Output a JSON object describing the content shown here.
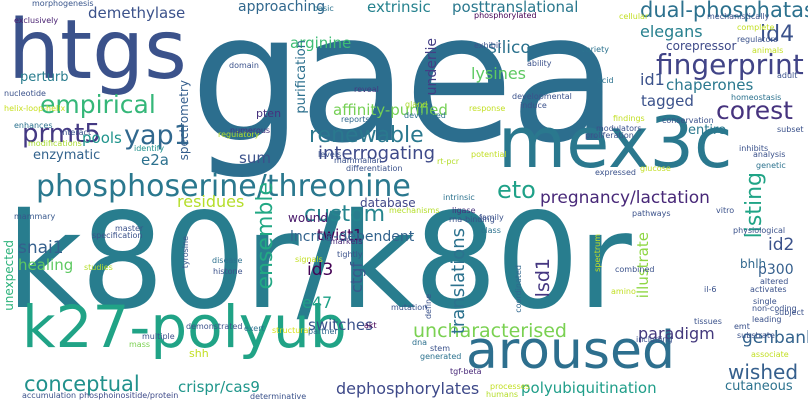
{
  "title": "",
  "words": [
    {
      "text": "gaea",
      "color": "#2c6e8e"
    },
    {
      "text": "k80r/k80r",
      "color": "#287d8e"
    },
    {
      "text": "htgs",
      "color": "#3b528b"
    },
    {
      "text": "k27-polyub",
      "color": "#20a386"
    },
    {
      "text": "mex3c",
      "color": "#2a788e"
    },
    {
      "text": "aroused",
      "color": "#2d6f8e"
    },
    {
      "text": "phosphoserine/threonine",
      "color": "#2a788e"
    },
    {
      "text": "fingerprint",
      "color": "#414487"
    },
    {
      "text": "dual-phosphatase",
      "color": "#2c718e"
    },
    {
      "text": "empirical",
      "color": "#35b779"
    },
    {
      "text": "prmt5",
      "color": "#443983"
    },
    {
      "text": "yap1",
      "color": "#31688e"
    },
    {
      "text": "corest",
      "color": "#46337e"
    },
    {
      "text": "id4",
      "color": "#3b528b"
    },
    {
      "text": "renewable",
      "color": "#2a788e"
    },
    {
      "text": "interrogating",
      "color": "#3e4a89"
    },
    {
      "text": "custom",
      "color": "#25858e"
    },
    {
      "text": "ensemble",
      "color": "#22a884"
    },
    {
      "text": "listing",
      "color": "#20a486"
    },
    {
      "text": "pregnancy/lactation",
      "color": "#482878"
    },
    {
      "text": "eto",
      "color": "#1fa188"
    },
    {
      "text": "uncharacterised",
      "color": "#7ad151"
    },
    {
      "text": "conceptual",
      "color": "#21918c"
    },
    {
      "text": "crispr/cas9",
      "color": "#1f968b"
    },
    {
      "text": "dephosphorylates",
      "color": "#3e4989"
    },
    {
      "text": "polyubiquitination",
      "color": "#1f9e89"
    },
    {
      "text": "wished",
      "color": "#355f8d"
    },
    {
      "text": "genbank",
      "color": "#33638d"
    },
    {
      "text": "paradigm",
      "color": "#44397d"
    },
    {
      "text": "translations",
      "color": "#2c728e"
    },
    {
      "text": "snai1",
      "color": "#35608d"
    },
    {
      "text": "twist1",
      "color": "#440154"
    },
    {
      "text": "lsd1",
      "color": "#453781"
    },
    {
      "text": "id2",
      "color": "#3b528b"
    },
    {
      "text": "id3",
      "color": "#440154"
    },
    {
      "text": "e47",
      "color": "#1fa187"
    },
    {
      "text": "ctgf",
      "color": "#38598c"
    },
    {
      "text": "switches",
      "color": "#3b528b"
    },
    {
      "text": "lncrna-dependent",
      "color": "#33638d"
    },
    {
      "text": "healing",
      "color": "#5ec962"
    },
    {
      "text": "residues",
      "color": "#b5de2b"
    },
    {
      "text": "demethylase",
      "color": "#3b528b"
    },
    {
      "text": "approaching",
      "color": "#31688e"
    },
    {
      "text": "extrinsic",
      "color": "#26828e"
    },
    {
      "text": "posttranslational",
      "color": "#2a788e"
    },
    {
      "text": "elegans",
      "color": "#27808e"
    },
    {
      "text": "corepressor",
      "color": "#3e4a89"
    },
    {
      "text": "silico",
      "color": "#2c728e"
    },
    {
      "text": "arginine",
      "color": "#3ebc74"
    },
    {
      "text": "purification",
      "color": "#2d708e"
    },
    {
      "text": "lysines",
      "color": "#5ec962"
    },
    {
      "text": "affinity-purified",
      "color": "#75d054"
    },
    {
      "text": "tagged",
      "color": "#3b528b"
    },
    {
      "text": "chaperones",
      "color": "#2a788e"
    },
    {
      "text": "id1",
      "color": "#3b528b"
    },
    {
      "text": "entire",
      "color": "#2a788e"
    },
    {
      "text": "sum",
      "color": "#3b528b"
    },
    {
      "text": "e2a",
      "color": "#2c718e"
    },
    {
      "text": "enzymatic",
      "color": "#33638d"
    },
    {
      "text": "pools",
      "color": "#1f948c"
    },
    {
      "text": "perturb",
      "color": "#287c8e"
    },
    {
      "text": "spectrometry",
      "color": "#355e8d"
    },
    {
      "text": "underlie",
      "color": "#433e85"
    },
    {
      "text": "wound",
      "color": "#48186a"
    },
    {
      "text": "database",
      "color": "#404688"
    },
    {
      "text": "bhlh",
      "color": "#31688e"
    },
    {
      "text": "unexpected",
      "color": "#2eb37c"
    },
    {
      "text": "illustrate",
      "color": "#8fd744"
    },
    {
      "text": "p300",
      "color": "#355f8d"
    },
    {
      "text": "shh",
      "color": "#c2df23"
    },
    {
      "text": "pten",
      "color": "#46327e"
    },
    {
      "text": "cutaneous",
      "color": "#2c728e"
    },
    {
      "text": "interact",
      "color": "#3b528b"
    },
    {
      "text": "regulatory",
      "color": "#b5de2b"
    },
    {
      "text": "nucleotide",
      "color": "#3b528b"
    },
    {
      "text": "helix-loop-helix",
      "color": "#c8e020"
    },
    {
      "text": "morphogenesis",
      "color": "#39568c"
    },
    {
      "text": "exclusively",
      "color": "#482071"
    },
    {
      "text": "basic",
      "color": "#2c728e"
    },
    {
      "text": "domain",
      "color": "#3b528b"
    },
    {
      "text": "reveal",
      "color": "#443a83"
    },
    {
      "text": "gland",
      "color": "#addc30"
    },
    {
      "text": "numerous",
      "color": "#46327e"
    },
    {
      "text": "modifications",
      "color": "#a8db34"
    },
    {
      "text": "enhances",
      "color": "#2c728e"
    },
    {
      "text": "identify",
      "color": "#21918c"
    },
    {
      "text": "mammary",
      "color": "#38588c"
    },
    {
      "text": "master",
      "color": "#3b528b"
    },
    {
      "text": "specification",
      "color": "#3b528b"
    },
    {
      "text": "disease",
      "color": "#2d708e"
    },
    {
      "text": "histone",
      "color": "#3b528b"
    },
    {
      "text": "markers",
      "color": "#482878"
    },
    {
      "text": "tightly",
      "color": "#3b528b"
    },
    {
      "text": "signals",
      "color": "#c2df23"
    },
    {
      "text": "tyrosine",
      "color": "#39568c"
    },
    {
      "text": "studies",
      "color": "#b5de2b"
    },
    {
      "text": "multiple",
      "color": "#3b528b"
    },
    {
      "text": "mass",
      "color": "#7ad151"
    },
    {
      "text": "demonstrated",
      "color": "#3b528b"
    },
    {
      "text": "exert",
      "color": "#2c728e"
    },
    {
      "text": "structural",
      "color": "#d8e219"
    },
    {
      "text": "partner",
      "color": "#31688e"
    },
    {
      "text": "akt",
      "color": "#440154"
    },
    {
      "text": "mutation",
      "color": "#3b528b"
    },
    {
      "text": "dna",
      "color": "#2d708e"
    },
    {
      "text": "define",
      "color": "#3b528b"
    },
    {
      "text": "stem",
      "color": "#3b528b"
    },
    {
      "text": "generated",
      "color": "#2c728e"
    },
    {
      "text": "tgf-beta",
      "color": "#482878"
    },
    {
      "text": "processes",
      "color": "#c2df23"
    },
    {
      "text": "humans",
      "color": "#b5de2b"
    },
    {
      "text": "accumulation",
      "color": "#3b528b"
    },
    {
      "text": "phosphoinositide/protein",
      "color": "#3e4a89"
    },
    {
      "text": "determinative",
      "color": "#3b528b"
    },
    {
      "text": "coordinated",
      "color": "#31688e"
    },
    {
      "text": "rna-binding",
      "color": "#3b528b"
    },
    {
      "text": "ligase",
      "color": "#46337e"
    },
    {
      "text": "intrinsic",
      "color": "#2c728e"
    },
    {
      "text": "mechanisms",
      "color": "#b5de2b"
    },
    {
      "text": "family",
      "color": "#3b528b"
    },
    {
      "text": "class",
      "color": "#2c728e"
    },
    {
      "text": "pathways",
      "color": "#3b528b"
    },
    {
      "text": "mammalian",
      "color": "#3b528b"
    },
    {
      "text": "differentiation",
      "color": "#3b528b"
    },
    {
      "text": "rt-pcr",
      "color": "#b5de2b"
    },
    {
      "text": "potential",
      "color": "#c2df23"
    },
    {
      "text": "reports",
      "color": "#31688e"
    },
    {
      "text": "levels",
      "color": "#3b528b"
    },
    {
      "text": "developed",
      "color": "#2c728e"
    },
    {
      "text": "developmental",
      "color": "#3b528b"
    },
    {
      "text": "induce",
      "color": "#3b528b"
    },
    {
      "text": "response",
      "color": "#c2df23"
    },
    {
      "text": "ability",
      "color": "#3b528b"
    },
    {
      "text": "exhibit",
      "color": "#3b528b"
    },
    {
      "text": "variety",
      "color": "#2c728e"
    },
    {
      "text": "acid",
      "color": "#2c728e"
    },
    {
      "text": "phosphorylated",
      "color": "#440154"
    },
    {
      "text": "cellular",
      "color": "#c2df23"
    },
    {
      "text": "mechanistically",
      "color": "#3b528b"
    },
    {
      "text": "complete",
      "color": "#c2df23"
    },
    {
      "text": "regulators",
      "color": "#3b528b"
    },
    {
      "text": "animals",
      "color": "#c2df23"
    },
    {
      "text": "adult",
      "color": "#3b528b"
    },
    {
      "text": "homeostasis",
      "color": "#2c728e"
    },
    {
      "text": "findings",
      "color": "#c2df23"
    },
    {
      "text": "conservation",
      "color": "#3b528b"
    },
    {
      "text": "modulators",
      "color": "#3b528b"
    },
    {
      "text": "proliferation",
      "color": "#3b528b"
    },
    {
      "text": "subset",
      "color": "#3b528b"
    },
    {
      "text": "inhibits",
      "color": "#3b528b"
    },
    {
      "text": "analysis",
      "color": "#3b528b"
    },
    {
      "text": "glucose",
      "color": "#c2df23"
    },
    {
      "text": "genetic",
      "color": "#2c728e"
    },
    {
      "text": "expressed",
      "color": "#3b528b"
    },
    {
      "text": "physiological",
      "color": "#3b528b"
    },
    {
      "text": "vitro",
      "color": "#3b528b"
    },
    {
      "text": "spectrum",
      "color": "#c2df23"
    },
    {
      "text": "combined",
      "color": "#3b528b"
    },
    {
      "text": "single",
      "color": "#3b528b"
    },
    {
      "text": "altered",
      "color": "#3b528b"
    },
    {
      "text": "activates",
      "color": "#3b528b"
    },
    {
      "text": "non-coding",
      "color": "#3b528b"
    },
    {
      "text": "leading",
      "color": "#3b528b"
    },
    {
      "text": "subject",
      "color": "#3b528b"
    },
    {
      "text": "il-6",
      "color": "#3b528b"
    },
    {
      "text": "amino",
      "color": "#c2df23"
    },
    {
      "text": "tissues",
      "color": "#3b528b"
    },
    {
      "text": "emt",
      "color": "#3b528b"
    },
    {
      "text": "substrate",
      "color": "#3b528b"
    },
    {
      "text": "associate",
      "color": "#c2df23"
    },
    {
      "text": "including",
      "color": "#3b528b"
    }
  ]
}
